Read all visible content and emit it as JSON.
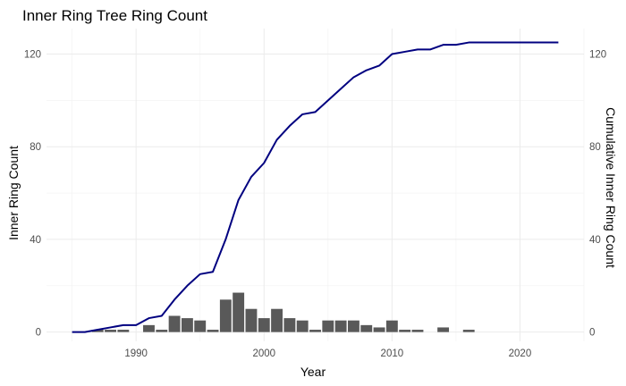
{
  "chart_data": {
    "type": "bar+line",
    "title": "Inner Ring Tree Ring Count",
    "xlabel": "Year",
    "ylabel": "Inner Ring Count",
    "y2label": "Cumulative Inner Ring Count",
    "xlim": [
      1983,
      2025
    ],
    "ylim": [
      -4,
      131
    ],
    "xticks": [
      1990,
      2000,
      2010,
      2020
    ],
    "yticks": [
      0,
      40,
      80,
      120
    ],
    "grid": true,
    "colors": {
      "bars": "#595959",
      "line": "#000080",
      "grid": "#ebebeb"
    },
    "bars": {
      "name": "Inner Ring Count",
      "x": [
        1985,
        1986,
        1987,
        1988,
        1989,
        1990,
        1991,
        1992,
        1993,
        1994,
        1995,
        1996,
        1997,
        1998,
        1999,
        2000,
        2001,
        2002,
        2003,
        2004,
        2005,
        2006,
        2007,
        2008,
        2009,
        2010,
        2011,
        2012,
        2013,
        2014,
        2015,
        2016,
        2017,
        2018,
        2019,
        2020,
        2021,
        2022,
        2023
      ],
      "values": [
        0,
        0,
        1,
        1,
        1,
        0,
        3,
        1,
        7,
        6,
        5,
        1,
        14,
        17,
        10,
        6,
        10,
        6,
        5,
        1,
        5,
        5,
        5,
        3,
        2,
        5,
        1,
        1,
        0,
        2,
        0,
        1,
        0,
        0,
        0,
        0,
        0,
        0,
        0
      ]
    },
    "line": {
      "name": "Cumulative Inner Ring Count",
      "x": [
        1985,
        1986,
        1987,
        1988,
        1989,
        1990,
        1991,
        1992,
        1993,
        1994,
        1995,
        1996,
        1997,
        1998,
        1999,
        2000,
        2001,
        2002,
        2003,
        2004,
        2005,
        2006,
        2007,
        2008,
        2009,
        2010,
        2011,
        2012,
        2013,
        2014,
        2015,
        2016,
        2017,
        2018,
        2019,
        2020,
        2021,
        2022,
        2023
      ],
      "values": [
        0,
        0,
        1,
        2,
        3,
        3,
        6,
        7,
        14,
        20,
        25,
        26,
        40,
        57,
        67,
        73,
        83,
        89,
        94,
        95,
        100,
        105,
        110,
        113,
        115,
        120,
        121,
        122,
        122,
        124,
        124,
        125,
        125,
        125,
        125,
        125,
        125,
        125,
        125
      ]
    }
  }
}
